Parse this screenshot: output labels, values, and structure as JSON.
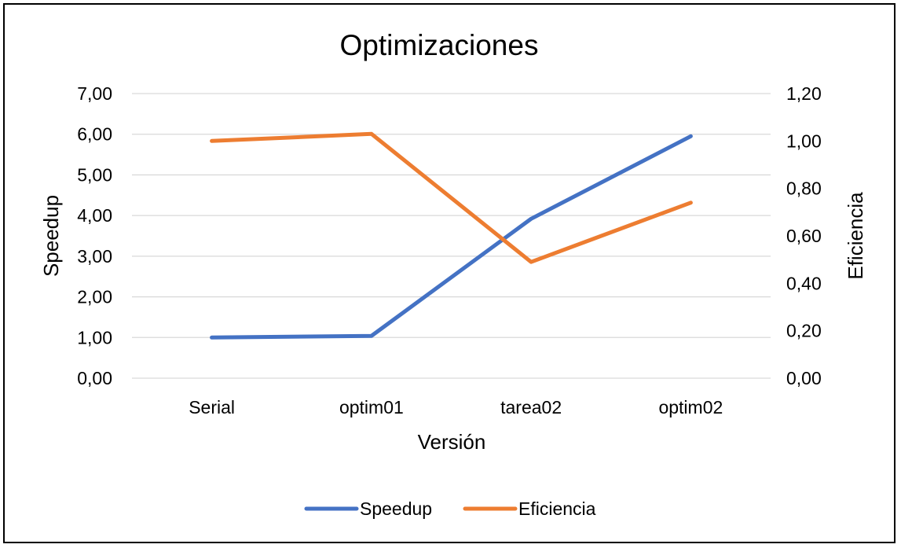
{
  "chart_data": {
    "type": "line",
    "title": "Optimizaciones",
    "xlabel": "Versión",
    "ylabel": "Speedup",
    "y2label": "Eficiencia",
    "categories": [
      "Serial",
      "optim01",
      "tarea02",
      "optim02"
    ],
    "series": [
      {
        "name": "Speedup",
        "axis": "left",
        "color": "#4472C4",
        "values": [
          1.0,
          1.04,
          3.92,
          5.95
        ]
      },
      {
        "name": "Eficiencia",
        "axis": "right",
        "color": "#ED7D31",
        "values": [
          1.0,
          1.03,
          0.49,
          0.74
        ]
      }
    ],
    "ylim": [
      0,
      7
    ],
    "y2lim": [
      0,
      1.2
    ],
    "yticks": [
      "0,00",
      "1,00",
      "2,00",
      "3,00",
      "4,00",
      "5,00",
      "6,00",
      "7,00"
    ],
    "y2ticks": [
      "0,00",
      "0,20",
      "0,40",
      "0,60",
      "0,80",
      "1,00",
      "1,20"
    ],
    "grid": true,
    "gridline_color": "#D9D9D9",
    "legend_position": "bottom"
  }
}
